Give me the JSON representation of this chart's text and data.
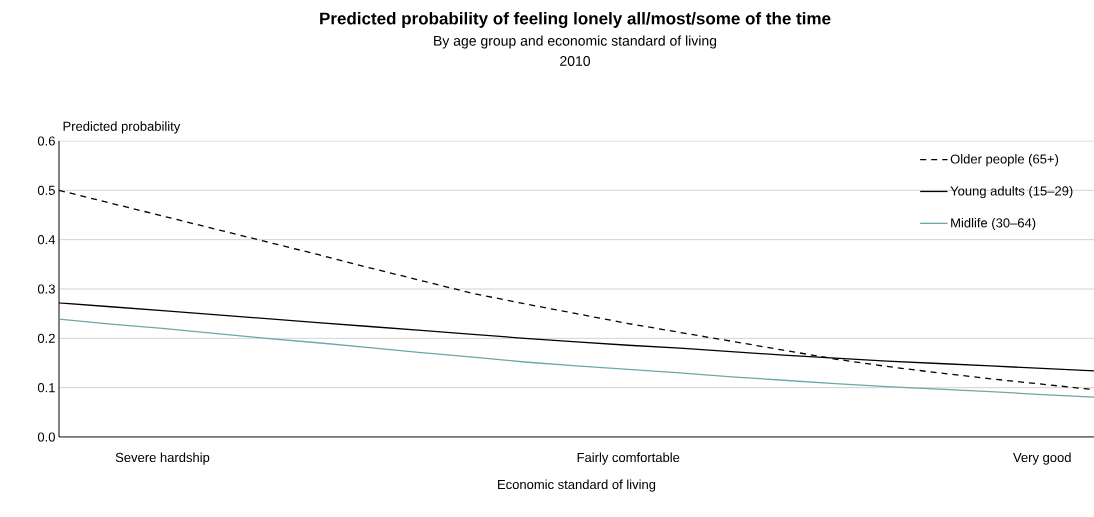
{
  "chart_data": {
    "type": "line",
    "title": "Predicted probability of feeling lonely all/most/some  of the time",
    "subtitle": "By age group and economic standard of living",
    "annotations": [
      "2010"
    ],
    "xlabel": "Economic standard of living",
    "ylabel": "Predicted probability",
    "categories": [
      null,
      null,
      "Severe hardship",
      null,
      null,
      null,
      null,
      null,
      null,
      null,
      null,
      "Fairly comfortable",
      null,
      null,
      null,
      null,
      null,
      null,
      null,
      "Very good",
      null
    ],
    "series": [
      {
        "name": "Older people (65+)",
        "color": "#000000",
        "line_style": "dashed",
        "values": [
          0.5,
          0.474,
          0.448,
          0.422,
          0.396,
          0.37,
          0.343,
          0.317,
          0.291,
          0.27,
          0.25,
          0.23,
          0.212,
          0.194,
          0.176,
          0.158,
          0.143,
          0.13,
          0.118,
          0.107,
          0.096
        ]
      },
      {
        "name": "Young adults (15–29)",
        "color": "#000000",
        "line_style": "solid",
        "values": [
          0.272,
          0.264,
          0.256,
          0.248,
          0.24,
          0.232,
          0.224,
          0.216,
          0.208,
          0.2,
          0.193,
          0.186,
          0.18,
          0.173,
          0.166,
          0.16,
          0.154,
          0.149,
          0.144,
          0.139,
          0.134
        ]
      },
      {
        "name": "Midlife (30–64)",
        "color": "#6aa8a8",
        "line_style": "solid",
        "values": [
          0.239,
          0.229,
          0.22,
          0.21,
          0.2,
          0.191,
          0.181,
          0.171,
          0.162,
          0.152,
          0.144,
          0.137,
          0.13,
          0.122,
          0.115,
          0.108,
          0.102,
          0.097,
          0.092,
          0.086,
          0.081
        ]
      }
    ],
    "ylim": [
      0,
      0.6
    ],
    "yticks": [
      {
        "value": 0,
        "label": "0.0"
      },
      0.1,
      0.2,
      0.3,
      0.4,
      0.5,
      0.6
    ],
    "grid": "y",
    "legend": "top right"
  }
}
